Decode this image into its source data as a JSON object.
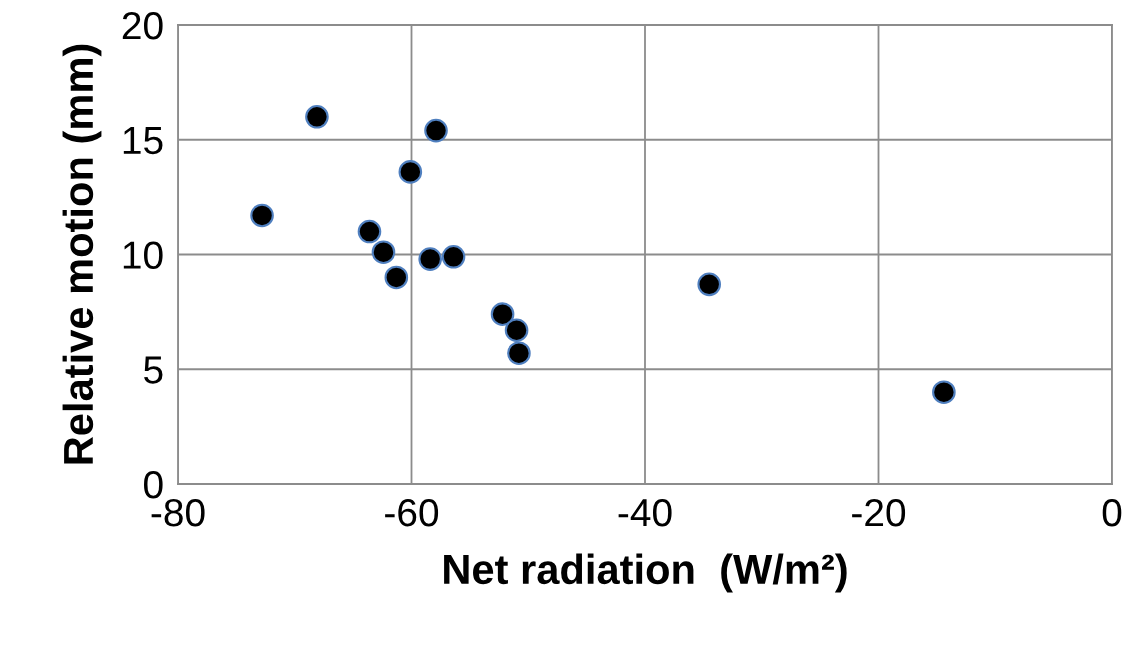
{
  "chart_data": {
    "type": "scatter",
    "xlabel": "Net radiation  (W/m²)",
    "ylabel": "Relative motion (mm)",
    "x": [
      -72.8,
      -68.1,
      -57.9,
      -60.1,
      -63.6,
      -62.4,
      -61.3,
      -58.4,
      -56.4,
      -52.2,
      -51.0,
      -50.8,
      -34.5,
      -14.4
    ],
    "series": [
      {
        "color": "#000000",
        "values": [
          11.7,
          16.0,
          15.4,
          13.6,
          11.0,
          10.1,
          9.0,
          9.8,
          9.9,
          7.4,
          6.7,
          5.7,
          8.7,
          4.0
        ]
      }
    ],
    "xlim": [
      -80,
      0
    ],
    "xticks": [
      -80,
      -60,
      -40,
      -20,
      0
    ],
    "ylim": [
      0,
      20
    ],
    "yticks": [
      0,
      5,
      10,
      15,
      20
    ],
    "grid": true,
    "marker": "circle"
  }
}
